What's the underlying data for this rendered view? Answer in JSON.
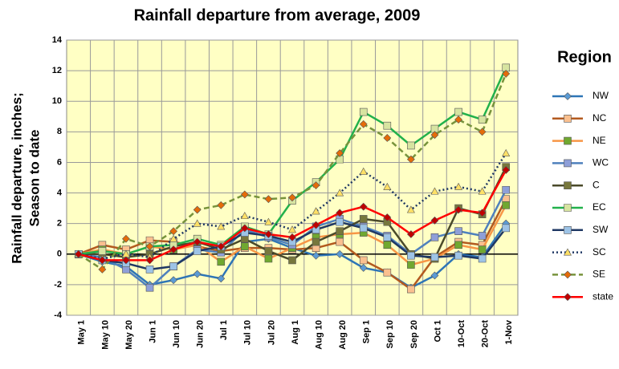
{
  "chart_data": {
    "type": "line",
    "title": "Rainfall departure from average, 2009",
    "ylabel": [
      "Rainfall departure, inches;",
      "Season to date"
    ],
    "legend_title": "Region",
    "legend": "right",
    "grid": true,
    "background": "#ffffc4",
    "categories": [
      "May 1",
      "May 10",
      "May 20",
      "Jun 1",
      "Jun 10",
      "Jun 20",
      "Jul 1",
      "Jul 10",
      "Jul 20",
      "Aug 1",
      "Aug 10",
      "Aug 20",
      "Sep 1",
      "Sep 10",
      "Sep 20",
      "Oct 1",
      "10-Oct",
      "20-Oct",
      "1-Nov"
    ],
    "ylim": [
      -4,
      14
    ],
    "yticks": [
      -4,
      -2,
      0,
      2,
      4,
      6,
      8,
      10,
      12,
      14
    ],
    "series": [
      {
        "name": "NW",
        "color": "#2e75b6",
        "marker": "diamond",
        "marker_color": "#5b9bd5",
        "dash": "solid",
        "values": [
          0,
          -0.5,
          -0.8,
          -2,
          -1.7,
          -1.3,
          -1.6,
          0.8,
          1.0,
          0.4,
          -0.1,
          0,
          -0.9,
          -1.2,
          -2.2,
          -1.4,
          0,
          -0.2,
          2.0
        ]
      },
      {
        "name": "NC",
        "color": "#b35a1f",
        "marker": "square",
        "marker_color": "#fac08f",
        "dash": "solid",
        "values": [
          0,
          0.6,
          0.3,
          0.9,
          0.8,
          0.5,
          0.2,
          0.4,
          0.4,
          0.3,
          0.4,
          0.8,
          -0.4,
          -1.2,
          -2.3,
          -0.2,
          0.8,
          0.6,
          3.6
        ]
      },
      {
        "name": "NE",
        "color": "#f79646",
        "marker": "square",
        "marker_color": "#70a830",
        "dash": "solid",
        "values": [
          0,
          0.3,
          0,
          0.5,
          0.3,
          0.6,
          -0.5,
          0.5,
          -0.3,
          0.4,
          1.1,
          1.3,
          1.4,
          0.6,
          -0.7,
          -0.3,
          0.6,
          0.3,
          3.2
        ]
      },
      {
        "name": "WC",
        "color": "#4f81bd",
        "marker": "square",
        "marker_color": "#8e9fd8",
        "dash": "solid",
        "values": [
          0,
          -0.2,
          -1.0,
          -2.2,
          -0.8,
          0.3,
          0.1,
          1.6,
          1.1,
          0.6,
          1.8,
          2.3,
          1.8,
          1.2,
          0,
          1.1,
          1.5,
          1.2,
          4.2
        ]
      },
      {
        "name": "C",
        "color": "#4a4a2a",
        "marker": "square",
        "marker_color": "#77773c",
        "dash": "solid",
        "values": [
          0,
          0,
          -0.2,
          0,
          0.5,
          0.8,
          0.3,
          1.0,
          0.2,
          -0.4,
          0.8,
          1.5,
          2.3,
          2.1,
          0,
          -0.3,
          3.0,
          2.6,
          5.7
        ]
      },
      {
        "name": "EC",
        "color": "#22b14c",
        "marker": "square",
        "marker_color": "#d7e4a0",
        "dash": "solid",
        "values": [
          0,
          0.2,
          0,
          0.5,
          0.6,
          1.0,
          0.6,
          1.8,
          1.3,
          3.5,
          4.7,
          6.2,
          9.3,
          8.4,
          7.1,
          8.2,
          9.3,
          8.8,
          12.2
        ]
      },
      {
        "name": "SW",
        "color": "#1f3864",
        "marker": "square",
        "marker_color": "#9dc3e6",
        "dash": "solid",
        "values": [
          0,
          -0.4,
          -0.6,
          -1.0,
          -0.8,
          0.2,
          0.5,
          1.4,
          1.2,
          0.8,
          1.6,
          2.1,
          1.7,
          1.1,
          -0.1,
          -0.2,
          -0.1,
          -0.3,
          1.7
        ]
      },
      {
        "name": "SC",
        "color": "#1f3864",
        "marker": "triangle",
        "marker_color": "#ffe066",
        "dash": "dotted",
        "values": [
          0,
          -0.3,
          0,
          -0.2,
          1.0,
          2.0,
          1.8,
          2.5,
          2.1,
          1.6,
          2.8,
          4.0,
          5.4,
          4.4,
          2.9,
          4.1,
          4.4,
          4.1,
          6.6
        ]
      },
      {
        "name": "SE",
        "color": "#77933c",
        "marker": "diamond",
        "marker_color": "#e46c0a",
        "dash": "dashed",
        "values": [
          0,
          -1.0,
          1.0,
          0.5,
          1.5,
          2.9,
          3.2,
          3.9,
          3.6,
          3.7,
          4.5,
          6.6,
          8.5,
          7.6,
          6.2,
          7.8,
          8.8,
          8.0,
          11.8
        ]
      },
      {
        "name": "state",
        "color": "#ff0000",
        "marker": "diamond",
        "marker_color": "#c00000",
        "dash": "solid",
        "values": [
          0,
          -0.4,
          -0.4,
          -0.4,
          0.3,
          0.8,
          0.5,
          1.7,
          1.3,
          1.1,
          1.9,
          2.7,
          3.1,
          2.4,
          1.3,
          2.2,
          2.9,
          2.7,
          5.5
        ]
      }
    ]
  }
}
